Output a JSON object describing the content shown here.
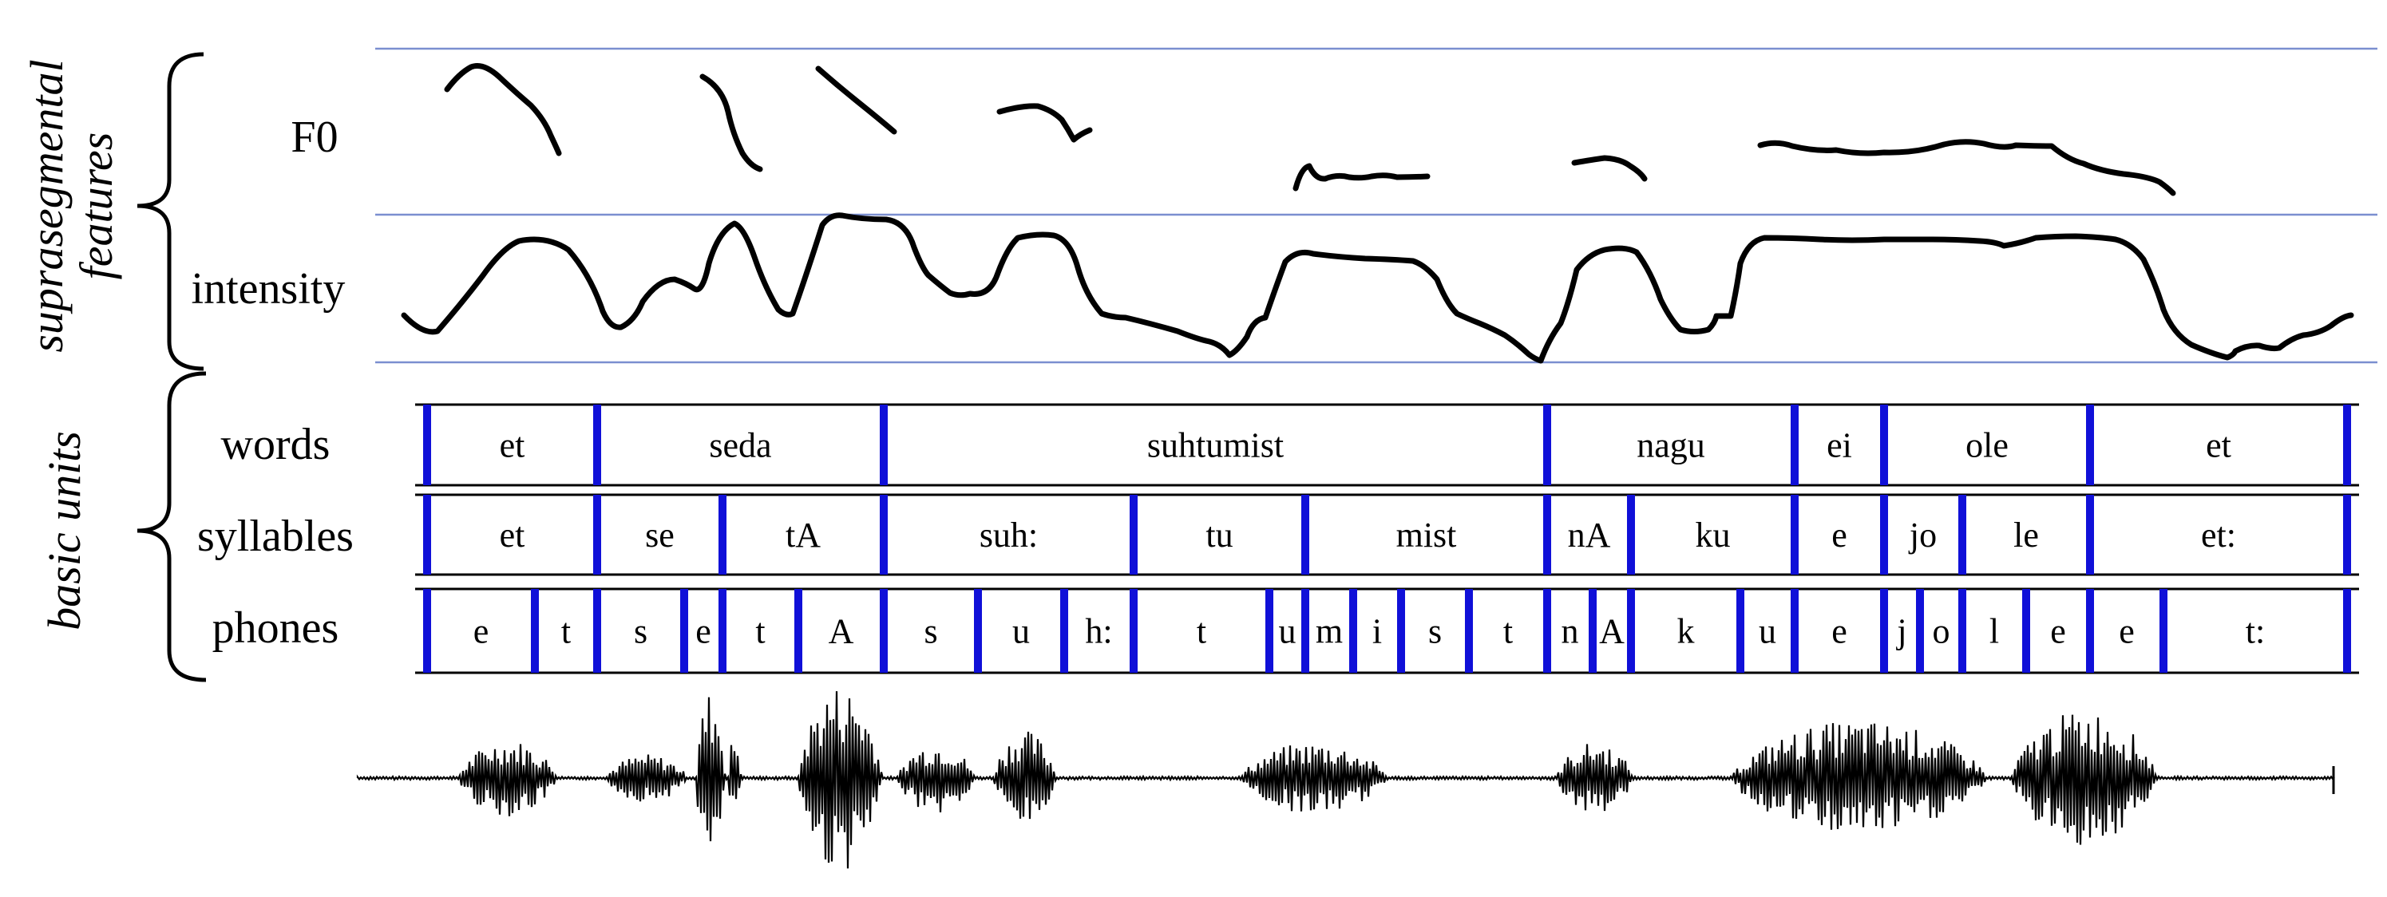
{
  "labels": {
    "group_top": [
      "suprasegmental",
      "features"
    ],
    "group_bottom": "basic units",
    "f0": "F0",
    "intensity": "intensity",
    "words": "words",
    "syllables": "syllables",
    "phones": "phones"
  },
  "colors": {
    "guide_line": "#7b8fd0",
    "boundary": "#1010d8",
    "tier_line": "#000000",
    "curve": "#000000"
  },
  "tiers": {
    "words": [
      "et",
      "seda",
      "suhtumist",
      "nagu",
      "ei",
      "ole",
      "et"
    ],
    "syllables": [
      "et",
      "se",
      "tA",
      "suh:",
      "tu",
      "mist",
      "nA",
      "ku",
      "e",
      "jo",
      "le",
      "et:"
    ],
    "phones": [
      "e",
      "t",
      "s",
      "e",
      "t",
      "A",
      "s",
      "u",
      "h:",
      "t",
      "u",
      "m",
      "i",
      "s",
      "t",
      "n",
      "A",
      "k",
      "u",
      "e",
      "j",
      "o",
      "l",
      "e",
      "e",
      "t:"
    ]
  }
}
